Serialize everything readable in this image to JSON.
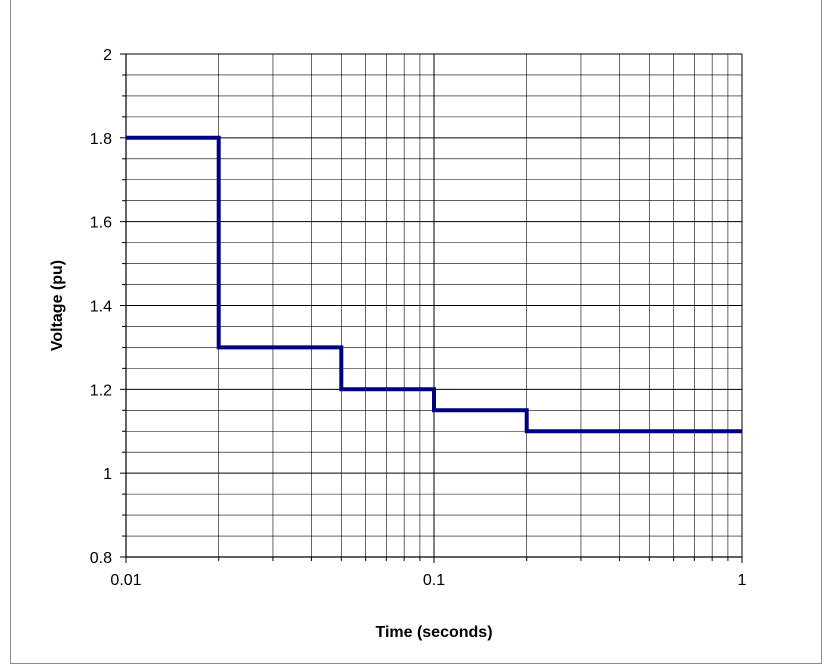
{
  "chart_data": {
    "type": "line",
    "title": "",
    "xlabel": "Time (seconds)",
    "ylabel": "Voltage (pu)",
    "x_scale": "log",
    "xlim": [
      0.01,
      1
    ],
    "ylim": [
      0.8,
      2
    ],
    "x_ticks": [
      "0.01",
      "0.1",
      "1"
    ],
    "y_ticks": [
      "0.8",
      "1",
      "1.2",
      "1.4",
      "1.6",
      "1.8",
      "2"
    ],
    "grid": true,
    "legend": "none",
    "line_style": "step",
    "series": [
      {
        "color": "#000080",
        "x": [
          0.01,
          0.02,
          0.02,
          0.05,
          0.05,
          0.1,
          0.1,
          0.2,
          0.2,
          1
        ],
        "y": [
          1.8,
          1.8,
          1.3,
          1.3,
          1.2,
          1.2,
          1.15,
          1.15,
          1.1,
          1.1
        ]
      }
    ]
  }
}
